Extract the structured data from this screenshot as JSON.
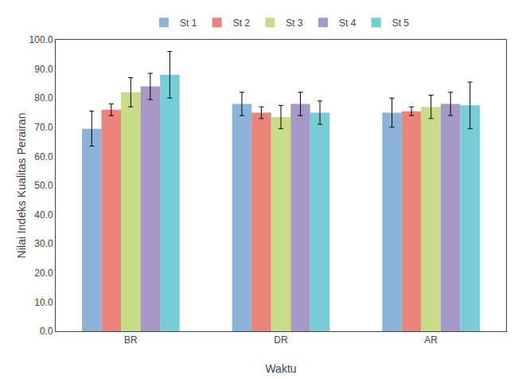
{
  "chart_data": {
    "type": "bar",
    "xlabel": "Waktu",
    "ylabel": "Nilai Indeks Kualitas Perairan",
    "categories": [
      "BR",
      "DR",
      "AR"
    ],
    "series": [
      {
        "name": "St 1",
        "color": "#8DB4D8",
        "values": [
          69.5,
          78.0,
          75.0
        ],
        "errors": [
          6.0,
          4.0,
          5.0
        ]
      },
      {
        "name": "St 2",
        "color": "#E8847A",
        "values": [
          76.0,
          75.0,
          75.5
        ],
        "errors": [
          2.0,
          2.0,
          1.5
        ]
      },
      {
        "name": "St 3",
        "color": "#C8DC88",
        "values": [
          82.0,
          73.5,
          77.0
        ],
        "errors": [
          5.0,
          4.0,
          4.0
        ]
      },
      {
        "name": "St 4",
        "color": "#A898C8",
        "values": [
          84.0,
          78.0,
          78.0
        ],
        "errors": [
          4.5,
          4.0,
          4.0
        ]
      },
      {
        "name": "St 5",
        "color": "#78CCD8",
        "values": [
          88.0,
          75.0,
          77.5
        ],
        "errors": [
          8.0,
          4.0,
          8.0
        ]
      }
    ],
    "ylim": [
      0,
      100
    ],
    "yticks": [
      {
        "value": 0,
        "label": "0.0"
      },
      {
        "value": 10,
        "label": "10.0"
      },
      {
        "value": 20,
        "label": "20.0"
      },
      {
        "value": 30,
        "label": "30.0"
      },
      {
        "value": 40,
        "label": "40.0"
      },
      {
        "value": 50,
        "label": "50.0"
      },
      {
        "value": 60,
        "label": "60.0"
      },
      {
        "value": 70,
        "label": "70.0"
      },
      {
        "value": 80,
        "label": "80.0"
      },
      {
        "value": 90,
        "label": "90.0"
      },
      {
        "value": 100,
        "label": "100.0"
      }
    ],
    "grid": false,
    "legend": "upper center"
  }
}
